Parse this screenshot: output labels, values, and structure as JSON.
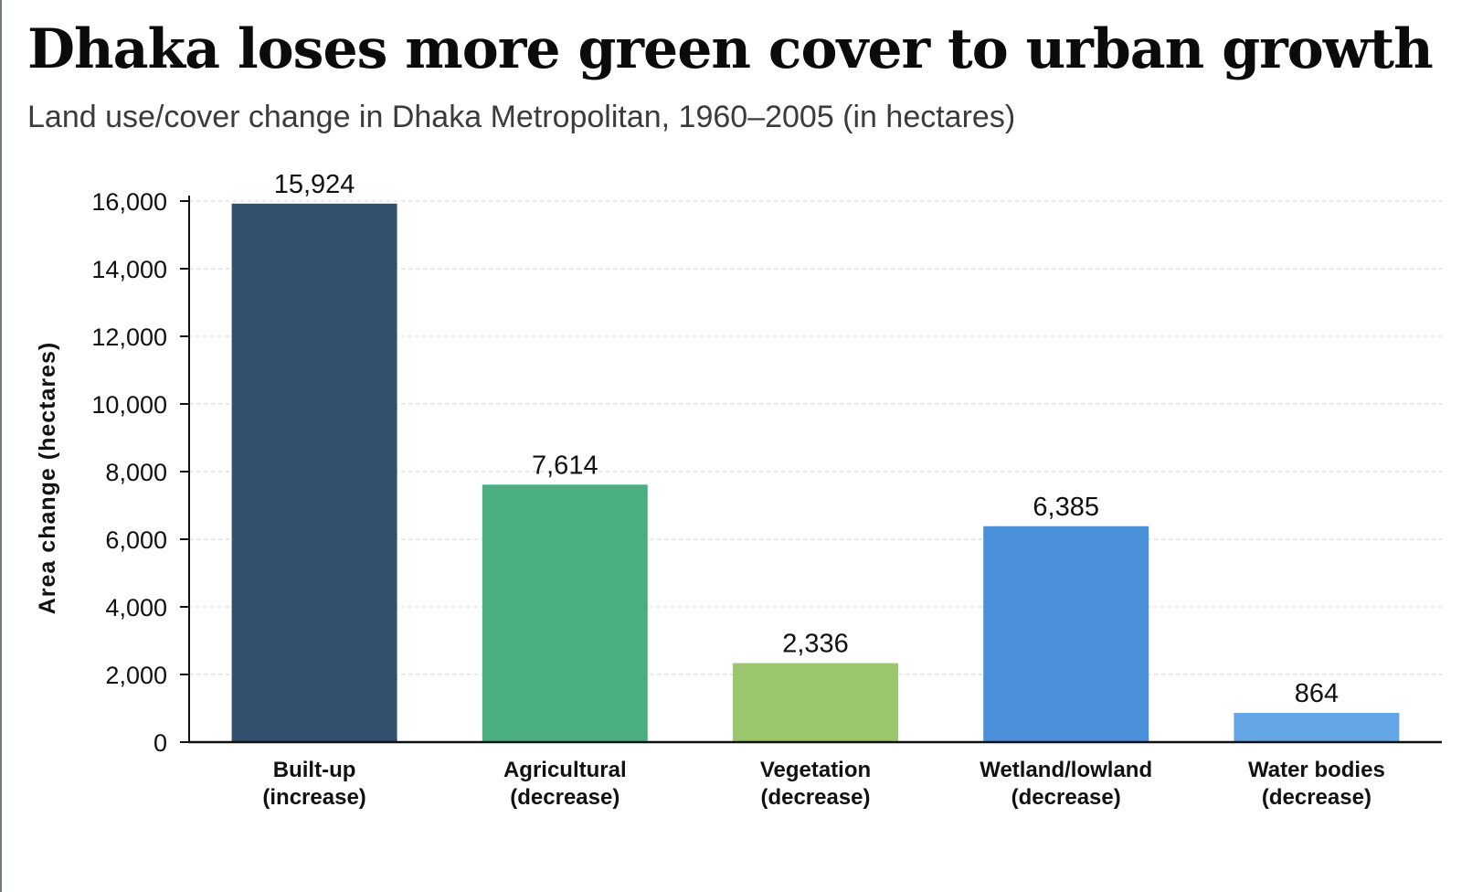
{
  "chart_data": {
    "type": "bar",
    "title": "Dhaka loses more green cover to urban growth",
    "subtitle": "Land use/cover change in Dhaka Metropolitan, 1960–2005 (in hectares)",
    "ylabel": "Area change (hectares)",
    "xlabel": "",
    "categories": [
      [
        "Built-up",
        "(increase)"
      ],
      [
        "Agricultural",
        "(decrease)"
      ],
      [
        "Vegetation",
        "(decrease)"
      ],
      [
        "Wetland/lowland",
        "(decrease)"
      ],
      [
        "Water bodies",
        "(decrease)"
      ]
    ],
    "values": [
      15924,
      7614,
      2336,
      6385,
      864
    ],
    "value_labels": [
      "15,924",
      "7,614",
      "2,336",
      "6,385",
      "864"
    ],
    "ylim": [
      0,
      16000
    ],
    "yticks": [
      0,
      2000,
      4000,
      6000,
      8000,
      10000,
      12000,
      14000,
      16000
    ],
    "ytick_labels": [
      "0",
      "2,000",
      "4,000",
      "6,000",
      "8,000",
      "10,000",
      "12,000",
      "14,000",
      "16,000"
    ],
    "bar_colors": [
      "#34506f",
      "#4aae81",
      "#9bc66b",
      "#4a90d9",
      "#64a6e6"
    ],
    "grid": true,
    "legend": "none"
  }
}
